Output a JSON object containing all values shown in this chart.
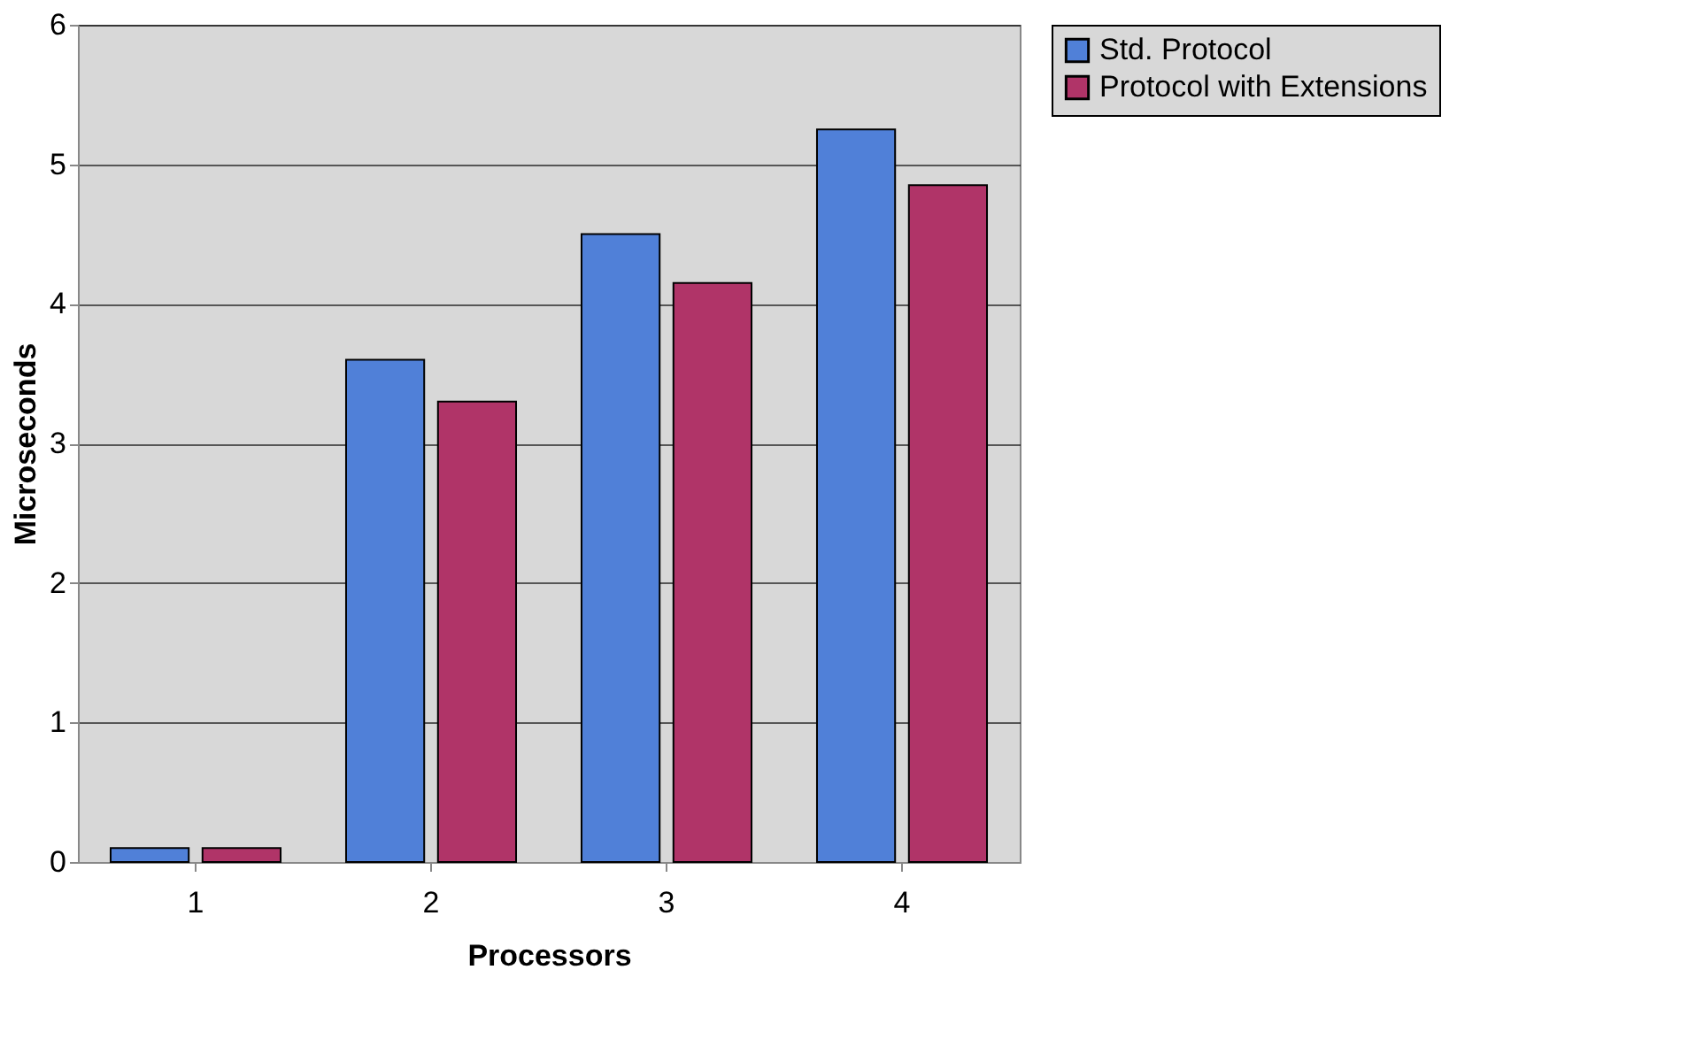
{
  "chart_data": {
    "type": "bar",
    "xlabel": "Processors",
    "ylabel": "Microseconds",
    "categories": [
      "1",
      "2",
      "3",
      "4"
    ],
    "series": [
      {
        "name": "Std. Protocol",
        "color": "#5080d8",
        "values": [
          0.1,
          3.6,
          4.5,
          5.25
        ]
      },
      {
        "name": "Protocol with Extensions",
        "color": "#b03468",
        "values": [
          0.1,
          3.3,
          4.15,
          4.85
        ]
      }
    ],
    "ylim": [
      0,
      6
    ],
    "yticks": [
      0,
      1,
      2,
      3,
      4,
      5,
      6
    ],
    "grid": "y",
    "legend": "right"
  }
}
